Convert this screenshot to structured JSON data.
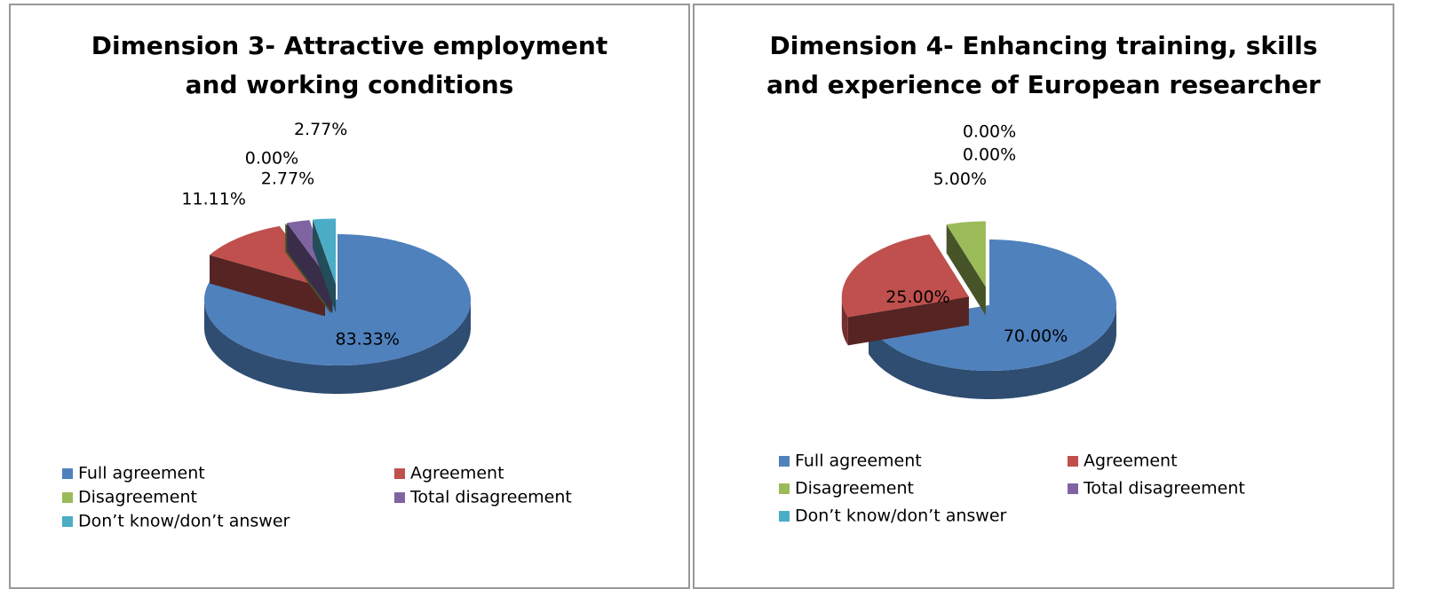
{
  "chart_data": [
    {
      "type": "pie3d",
      "title": "Dimension 3- Attractive employment and working conditions",
      "categories": [
        "Full agreement",
        "Agreement",
        "Disagreement",
        "Total disagreement",
        "Don’t know/don’t answer"
      ],
      "values": [
        83.33,
        11.11,
        0,
        2.77,
        2.77
      ],
      "value_labels": [
        "83.33%",
        "11.11%",
        "0.00%",
        "2.77%",
        "2.77%"
      ],
      "colors": [
        "#4f81bd",
        "#c0504d",
        "#9bbb59",
        "#8064a2",
        "#4bacc6"
      ]
    },
    {
      "type": "pie3d",
      "title": "Dimension 4- Enhancing training, skills and experience of European researcher",
      "categories": [
        "Full agreement",
        "Agreement",
        "Disagreement",
        "Total disagreement",
        "Don’t know/don’t answer"
      ],
      "values": [
        70,
        25,
        5,
        0,
        0
      ],
      "value_labels": [
        "70.00%",
        "25.00%",
        "5.00%",
        "0.00%",
        "0.00%"
      ],
      "colors": [
        "#4f81bd",
        "#c0504d",
        "#9bbb59",
        "#8064a2",
        "#4bacc6"
      ]
    }
  ]
}
